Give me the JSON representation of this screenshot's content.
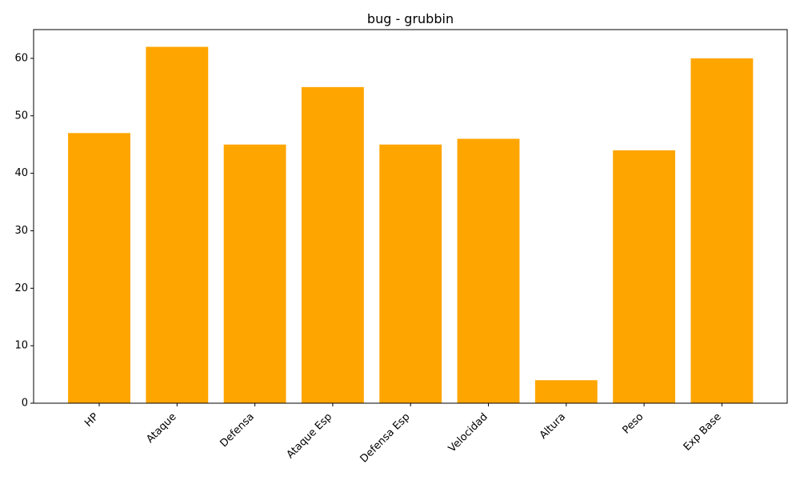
{
  "chart_data": {
    "type": "bar",
    "title": "bug - grubbin",
    "xlabel": "",
    "ylabel": "",
    "categories": [
      "HP",
      "Ataque",
      "Defensa",
      "Ataque Esp",
      "Defensa Esp",
      "Velocidad",
      "Altura",
      "Peso",
      "Exp Base"
    ],
    "values": [
      47,
      62,
      45,
      55,
      45,
      46,
      4,
      44,
      60
    ],
    "ylim": [
      0,
      65
    ],
    "yticks": [
      0,
      10,
      20,
      30,
      40,
      50,
      60
    ],
    "bar_color": "#ffa500",
    "grid": false,
    "legend": "none"
  }
}
